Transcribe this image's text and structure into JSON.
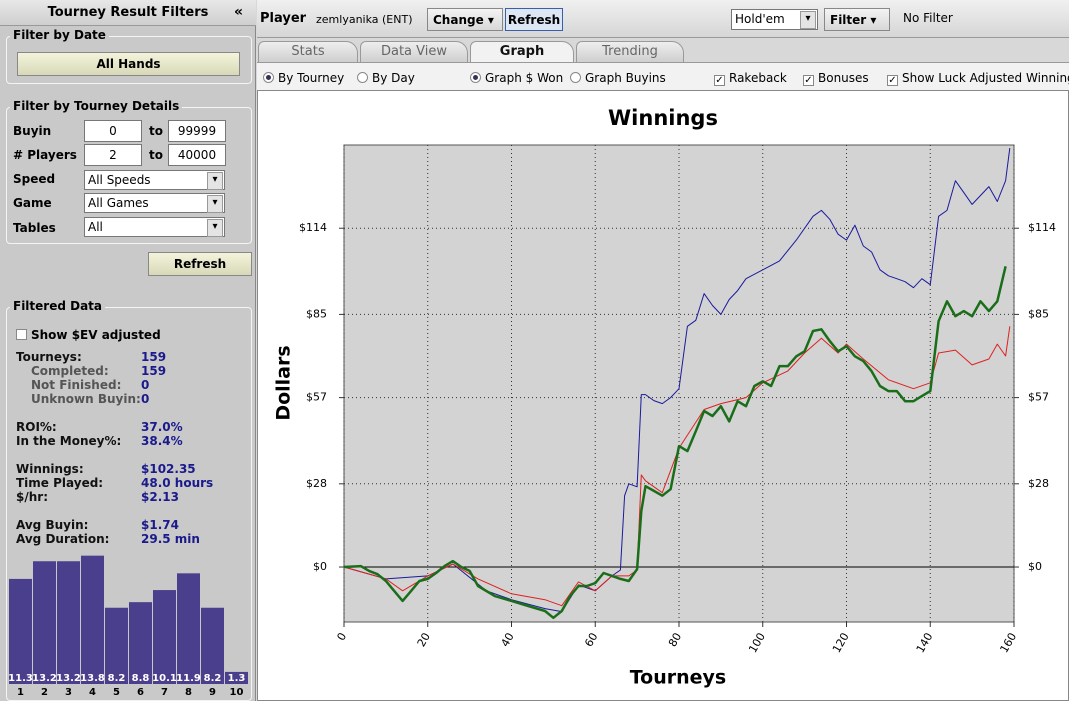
{
  "sidebar": {
    "title": "Tourney Result Filters",
    "collapse": "«",
    "filter_by_date": {
      "title": "Filter by Date",
      "button": "All Hands"
    },
    "filter_by_tourney": {
      "title": "Filter by Tourney Details",
      "buyin": {
        "label": "Buyin",
        "from": "0",
        "to_label": "to",
        "to": "99999"
      },
      "players": {
        "label": "# Players",
        "from": "2",
        "to_label": "to",
        "to": "40000"
      },
      "speed": {
        "label": "Speed",
        "value": "All Speeds"
      },
      "game": {
        "label": "Game",
        "value": "All Games"
      },
      "tables": {
        "label": "Tables",
        "value": "All"
      },
      "button": "Refresh"
    },
    "filtered_data": {
      "title": "Filtered Data",
      "checkbox": "Show $EV adjusted",
      "stats": [
        [
          "Tourneys:",
          "159"
        ],
        [
          "Completed:",
          "159"
        ],
        [
          "Not Finished:",
          "0"
        ],
        [
          "Unknown Buyin:",
          "0"
        ],
        [
          "ROI%:",
          "37.0%"
        ],
        [
          "In the Money%:",
          "38.4%"
        ],
        [
          "Winnings:",
          "$102.35"
        ],
        [
          "Time Played:",
          "48.0 hours"
        ],
        [
          "$/hr:",
          "$2.13"
        ],
        [
          "Avg Buyin:",
          "$1.74"
        ],
        [
          "Avg Duration:",
          "29.5 min"
        ]
      ],
      "histogram": {
        "categories": [
          "1",
          "2",
          "3",
          "4",
          "5",
          "6",
          "7",
          "8",
          "9",
          "10"
        ],
        "values": [
          11.3,
          13.2,
          13.2,
          13.8,
          8.2,
          8.8,
          10.1,
          11.9,
          8.2,
          1.3
        ],
        "color": "#4a3f8c"
      }
    }
  },
  "toolbar": {
    "player_label": "Player",
    "player": "zemlyanika (ENT)",
    "change": "Change",
    "refresh": "Refresh",
    "game": "Hold'em",
    "filter": "Filter",
    "filter_status": "No Filter"
  },
  "tabs": [
    "Stats",
    "Data View",
    "Graph",
    "Trending"
  ],
  "options": {
    "by_tourney": "By Tourney",
    "by_day": "By Day",
    "graph_won": "Graph $ Won",
    "graph_buyins": "Graph Buyins",
    "rakeback": "Rakeback",
    "bonuses": "Bonuses",
    "luck": "Show Luck Adjusted Winnings"
  },
  "chart_data": {
    "type": "line",
    "title": "Winnings",
    "x_label": "Tourneys",
    "y_label": "Dollars",
    "xlim": [
      0,
      160
    ],
    "xticks": [
      0,
      20,
      40,
      60,
      80,
      100,
      120,
      140,
      160
    ],
    "ylim": [
      -18.5,
      142
    ],
    "yticks": [
      {
        "value": 0,
        "label": "$0"
      },
      {
        "value": 28,
        "label": "$28"
      },
      {
        "value": 57,
        "label": "$57"
      },
      {
        "value": 85,
        "label": "$85"
      },
      {
        "value": 114,
        "label": "$114"
      }
    ],
    "grid": true,
    "series": [
      {
        "color": "#1a1a9c",
        "width": 1,
        "x": [
          0,
          10,
          20,
          26,
          34,
          40,
          48,
          52,
          56,
          60,
          64,
          66,
          67,
          68,
          70,
          71,
          72,
          74,
          76,
          78,
          80,
          82,
          84,
          86,
          88,
          90,
          92,
          94,
          96,
          100,
          104,
          108,
          112,
          114,
          116,
          118,
          120,
          122,
          124,
          126,
          128,
          130,
          132,
          134,
          136,
          138,
          140,
          142,
          144,
          146,
          148,
          150,
          152,
          154,
          156,
          158,
          159
        ],
        "values": [
          0,
          -4,
          -3,
          1,
          -8,
          -11,
          -14,
          -15,
          -6,
          -8,
          -3,
          -1,
          24,
          28,
          27,
          58,
          58,
          56,
          55,
          57,
          60,
          81,
          83,
          92,
          88,
          85,
          90,
          93,
          97,
          100,
          103,
          110,
          118,
          120,
          117,
          112,
          110,
          115,
          108,
          106,
          100,
          98,
          97,
          96,
          94,
          97,
          95,
          118,
          120,
          130,
          126,
          122,
          125,
          128,
          123,
          130,
          141
        ]
      },
      {
        "color": "#e02020",
        "width": 1,
        "x": [
          0,
          10,
          14,
          20,
          26,
          32,
          40,
          48,
          52,
          56,
          60,
          64,
          68,
          70,
          71,
          72,
          76,
          80,
          86,
          90,
          96,
          100,
          106,
          110,
          114,
          118,
          120,
          124,
          130,
          136,
          140,
          142,
          146,
          150,
          154,
          156,
          158,
          159
        ],
        "values": [
          0,
          -4,
          -8,
          -3,
          1,
          -4,
          -9,
          -11,
          -13,
          -5,
          -8,
          -3,
          -3,
          -1,
          31,
          29,
          25,
          40,
          53,
          55,
          57,
          62,
          66,
          72,
          77,
          72,
          75,
          70,
          63,
          60,
          62,
          72,
          73,
          68,
          70,
          75,
          71,
          81
        ]
      },
      {
        "color": "#1a6e1a",
        "width": 2.5,
        "x": [
          0,
          4,
          6,
          8,
          10,
          12,
          14,
          16,
          18,
          20,
          22,
          24,
          26,
          28,
          30,
          32,
          36,
          40,
          44,
          48,
          50,
          52,
          54,
          56,
          58,
          60,
          62,
          64,
          66,
          68,
          70,
          71,
          72,
          74,
          76,
          78,
          80,
          82,
          84,
          86,
          88,
          90,
          92,
          94,
          96,
          98,
          100,
          102,
          104,
          106,
          108,
          110,
          112,
          114,
          116,
          118,
          120,
          122,
          124,
          126,
          128,
          130,
          132,
          134,
          136,
          138,
          140,
          142,
          144,
          146,
          148,
          150,
          152,
          154,
          156,
          158
        ],
        "values": [
          0,
          0.3,
          -1.3,
          -2.4,
          -4.7,
          -8.1,
          -11.4,
          -8.1,
          -4.7,
          -4,
          -2,
          0.3,
          2,
          0,
          -1.3,
          -6.4,
          -9.8,
          -11.4,
          -13.1,
          -14.8,
          -17.1,
          -14.8,
          -9.8,
          -6.4,
          -6.4,
          -5.4,
          -2,
          -3,
          -4,
          -4.7,
          -0.7,
          18.8,
          27.2,
          25.6,
          24,
          26.2,
          40.7,
          39,
          45.7,
          52.5,
          50.8,
          54.1,
          49,
          55.8,
          54.1,
          60.9,
          62.5,
          60.9,
          67.6,
          67.6,
          70.9,
          72.6,
          79.4,
          80,
          76,
          72.6,
          74.3,
          70.9,
          69.3,
          65.9,
          60.9,
          59.2,
          59.2,
          55.8,
          55.8,
          57.5,
          59.2,
          82.7,
          89.4,
          84.4,
          86.1,
          84.4,
          89.4,
          86.1,
          89.4,
          101.2
        ]
      }
    ]
  }
}
